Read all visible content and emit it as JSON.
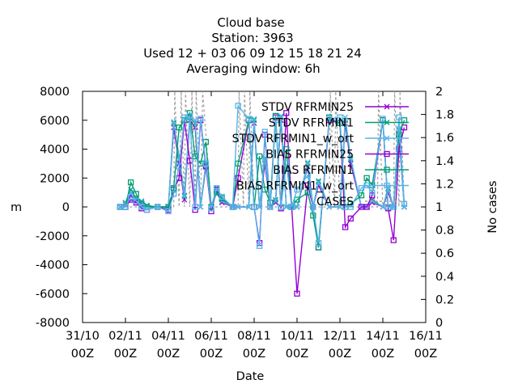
{
  "chart_data": {
    "type": "line",
    "title_lines": [
      "Cloud base",
      "Station:      3963",
      "Used  12 + 03 06 09 12 15 18 21 24",
      "Averaging window:  6h"
    ],
    "xlabel": "Date",
    "ylabel": "m",
    "y2label": "No cases",
    "xlim": [
      0,
      16
    ],
    "ylim": [
      -8000,
      8000
    ],
    "y2lim": [
      0,
      2
    ],
    "x_ticks": [
      {
        "v": 0,
        "l1": "31/10",
        "l2": "00Z"
      },
      {
        "v": 2,
        "l1": "02/11",
        "l2": "00Z"
      },
      {
        "v": 4,
        "l1": "04/11",
        "l2": "00Z"
      },
      {
        "v": 6,
        "l1": "06/11",
        "l2": "00Z"
      },
      {
        "v": 8,
        "l1": "08/11",
        "l2": "00Z"
      },
      {
        "v": 10,
        "l1": "10/11",
        "l2": "00Z"
      },
      {
        "v": 12,
        "l1": "12/11",
        "l2": "00Z"
      },
      {
        "v": 14,
        "l1": "14/11",
        "l2": "00Z"
      },
      {
        "v": 16,
        "l1": "16/11",
        "l2": "00Z"
      }
    ],
    "y_ticks": [
      "8000",
      "6000",
      "4000",
      "2000",
      "0",
      "-2000",
      "-4000",
      "-6000",
      "-8000"
    ],
    "y2_ticks": [
      "2",
      "1.8",
      "1.6",
      "1.4",
      "1.2",
      "1",
      "0.8",
      "0.6",
      "0.4",
      "0.2",
      "0"
    ],
    "legend": [
      "STDV RFRMIN25",
      "STDV RFRMIN1",
      "STDV RFRMIN1_w_ort",
      "BIAS RFRMIN25",
      "BIAS RFRMIN1",
      "BIAS RFRMIN1_w_ort",
      "CASES"
    ],
    "series": [
      {
        "name": "STDV RFRMIN25",
        "color": "#9400d3",
        "marker": "x",
        "x": [
          1.75,
          2.0,
          2.25,
          2.5,
          2.75,
          3.0,
          3.5,
          4.0,
          4.25,
          4.5,
          4.75,
          5.0,
          5.25,
          5.5,
          5.75,
          6.0,
          6.25,
          6.5,
          7.0,
          7.25,
          7.75,
          8.0,
          8.25,
          8.5,
          8.75,
          9.0,
          9.25,
          9.5,
          9.75,
          10.0,
          10.5,
          10.75,
          11.0,
          11.5,
          12.0,
          12.25,
          12.5,
          13.0,
          13.25,
          13.5,
          14.0,
          14.25,
          14.5,
          14.75,
          15.0
        ],
        "y": [
          0,
          200,
          800,
          400,
          300,
          0,
          0,
          0,
          5500,
          3000,
          500,
          6000,
          5500,
          0,
          2800,
          0,
          1000,
          300,
          0,
          0,
          0,
          5800,
          0,
          3000,
          0,
          300,
          6000,
          0,
          0,
          0,
          2800,
          0,
          1500,
          0,
          0,
          5800,
          3000,
          0,
          0,
          300,
          0,
          1000,
          0,
          5000,
          0
        ]
      },
      {
        "name": "STDV RFRMIN1",
        "color": "#009e73",
        "marker": "x",
        "x": [
          1.75,
          2.0,
          2.25,
          2.5,
          2.75,
          3.0,
          3.5,
          4.0,
          4.25,
          4.5,
          4.75,
          5.0,
          5.25,
          5.5,
          5.75,
          6.0,
          6.25,
          6.5,
          7.0,
          7.25,
          7.75,
          8.0,
          8.25,
          8.5,
          8.75,
          9.0,
          9.25,
          9.5,
          9.75,
          10.0,
          10.5,
          10.75,
          11.0,
          11.5,
          12.0,
          12.25,
          12.5,
          13.0,
          13.25,
          13.5,
          14.0,
          14.25,
          14.5,
          14.75,
          15.0
        ],
        "y": [
          0,
          300,
          1200,
          600,
          400,
          100,
          0,
          0,
          5800,
          3500,
          800,
          6200,
          5800,
          0,
          3000,
          0,
          1300,
          500,
          0,
          0,
          0,
          6000,
          0,
          3300,
          0,
          500,
          6200,
          0,
          0,
          0,
          3000,
          0,
          1800,
          0,
          0,
          6000,
          3300,
          0,
          0,
          500,
          0,
          1300,
          0,
          5300,
          0
        ]
      },
      {
        "name": "STDV RFRMIN1_w_ort",
        "color": "#56b4e9",
        "marker": "x",
        "x": [
          1.75,
          2.0,
          2.25,
          2.5,
          2.75,
          3.0,
          3.5,
          4.0,
          4.25,
          4.5,
          4.75,
          5.0,
          5.25,
          5.5,
          5.75,
          6.0,
          6.25,
          6.5,
          7.0,
          7.25,
          7.75,
          8.0,
          8.25,
          8.5,
          8.75,
          9.0,
          9.25,
          9.5,
          9.75,
          10.0,
          10.5,
          10.75,
          11.0,
          11.5,
          12.0,
          12.25,
          12.5,
          13.0,
          13.25,
          13.5,
          14.0,
          14.25,
          14.5,
          14.75,
          15.0
        ],
        "y": [
          0,
          250,
          1000,
          500,
          350,
          0,
          0,
          0,
          5900,
          3300,
          700,
          6300,
          6000,
          0,
          3100,
          0,
          1200,
          400,
          0,
          0,
          0,
          6100,
          0,
          3400,
          0,
          400,
          6300,
          0,
          0,
          0,
          3100,
          0,
          1700,
          0,
          0,
          6200,
          3400,
          0,
          0,
          400,
          0,
          1200,
          0,
          5400,
          0
        ]
      },
      {
        "name": "BIAS RFRMIN25",
        "color": "#9400d3",
        "marker": "s",
        "x": [
          1.75,
          2.0,
          2.25,
          2.5,
          2.75,
          3.0,
          3.5,
          4.0,
          4.25,
          4.5,
          4.75,
          5.0,
          5.25,
          5.5,
          5.75,
          6.0,
          6.25,
          6.5,
          7.0,
          7.25,
          7.75,
          8.0,
          8.25,
          8.5,
          8.75,
          9.0,
          9.25,
          9.5,
          9.75,
          10.0,
          10.5,
          10.75,
          11.0,
          11.5,
          12.0,
          12.25,
          12.5,
          13.0,
          13.25,
          13.5,
          14.0,
          14.25,
          14.5,
          14.75,
          15.0
        ],
        "y": [
          0,
          0,
          500,
          300,
          -100,
          -200,
          0,
          -200,
          1200,
          2000,
          6000,
          3200,
          -200,
          6000,
          2800,
          -300,
          1200,
          600,
          0,
          2000,
          6000,
          0,
          -2500,
          5000,
          0,
          6200,
          -100,
          6500,
          0,
          -6000,
          1500,
          0,
          -2800,
          6000,
          5800,
          -1400,
          -800,
          0,
          0,
          800,
          6000,
          -100,
          -2300,
          4000,
          5500
        ]
      },
      {
        "name": "BIAS RFRMIN1",
        "color": "#009e73",
        "marker": "s",
        "x": [
          1.75,
          2.0,
          2.25,
          2.5,
          2.75,
          3.0,
          3.5,
          4.0,
          4.25,
          4.5,
          4.75,
          5.0,
          5.25,
          5.5,
          5.75,
          6.0,
          6.25,
          6.5,
          7.0,
          7.25,
          7.75,
          8.0,
          8.25,
          8.5,
          8.75,
          9.0,
          9.25,
          9.5,
          9.75,
          10.0,
          10.5,
          10.75,
          11.0,
          11.5,
          12.0,
          12.25,
          12.5,
          13.0,
          13.25,
          13.5,
          14.0,
          14.25,
          14.5,
          14.75,
          15.0
        ],
        "y": [
          0,
          0,
          1700,
          900,
          200,
          0,
          0,
          0,
          1300,
          5500,
          6000,
          6500,
          3500,
          3000,
          4500,
          0,
          1000,
          600,
          0,
          3000,
          6000,
          0,
          3500,
          1200,
          300,
          6300,
          0,
          4000,
          0,
          500,
          1000,
          -600,
          -2800,
          6200,
          5800,
          0,
          200,
          800,
          2000,
          1500,
          6000,
          0,
          0,
          5000,
          6000
        ]
      },
      {
        "name": "BIAS RFRMIN1_w_ort",
        "color": "#56b4e9",
        "marker": "s",
        "x": [
          1.75,
          2.0,
          2.25,
          2.5,
          2.75,
          3.0,
          3.5,
          4.0,
          4.25,
          4.5,
          4.75,
          5.0,
          5.25,
          5.5,
          5.75,
          6.0,
          6.25,
          6.5,
          7.0,
          7.25,
          7.75,
          8.0,
          8.25,
          8.5,
          8.75,
          9.0,
          9.25,
          9.5,
          9.75,
          10.0,
          10.5,
          10.75,
          11.0,
          11.5,
          12.0,
          12.25,
          12.5,
          13.0,
          13.25,
          13.5,
          14.0,
          14.25,
          14.5,
          14.75,
          15.0
        ],
        "y": [
          0,
          0,
          700,
          400,
          0,
          -200,
          0,
          -300,
          900,
          2800,
          6200,
          6300,
          0,
          6100,
          3000,
          -100,
          1300,
          700,
          0,
          7000,
          6100,
          0,
          -2700,
          5200,
          0,
          6000,
          0,
          3000,
          0,
          1200,
          2200,
          0,
          -2500,
          6100,
          6200,
          0,
          0,
          1300,
          1500,
          1000,
          6100,
          0,
          0,
          6200,
          200
        ]
      },
      {
        "name": "CASES",
        "color": "#a0a0a0",
        "axis": "y2",
        "marker": "none",
        "x": [
          1.75,
          2.0,
          2.5,
          3.0,
          3.5,
          4.0,
          4.25,
          4.3,
          4.5,
          4.6,
          4.75,
          4.8,
          5.0,
          5.1,
          5.25,
          5.3,
          5.5,
          5.6,
          6.0,
          6.5,
          7.0,
          7.25,
          7.3,
          7.5,
          7.55,
          7.75,
          7.8,
          8.0,
          8.5,
          9.0,
          9.5,
          10.0,
          10.5,
          11.0,
          11.5,
          11.55,
          11.75,
          11.8,
          12.0,
          12.5,
          13.0,
          13.5,
          13.75,
          13.8,
          14.0,
          14.5,
          14.55,
          14.75,
          14.8,
          15.0
        ],
        "y": [
          1,
          1,
          1,
          1,
          1,
          1,
          1,
          2,
          1,
          2,
          1,
          2,
          1,
          2,
          1,
          2,
          1,
          2,
          1,
          1,
          1,
          1,
          2,
          1,
          2,
          1,
          2,
          1,
          1,
          1,
          1,
          1,
          1,
          1,
          1,
          2,
          1,
          2,
          1,
          1,
          1,
          1,
          1,
          2,
          1,
          1,
          2,
          1,
          2,
          1
        ]
      }
    ]
  }
}
